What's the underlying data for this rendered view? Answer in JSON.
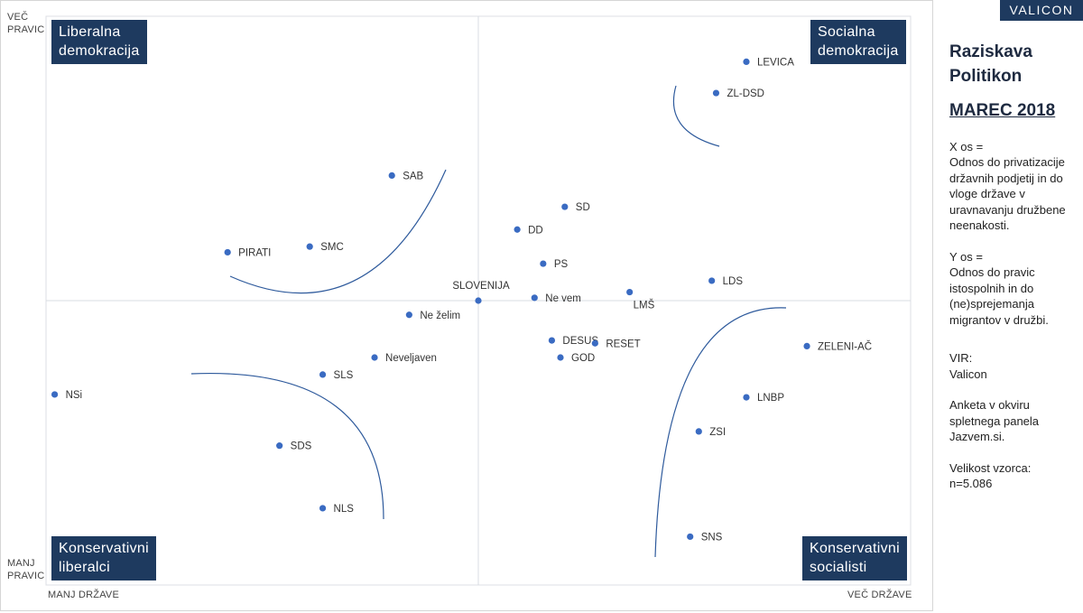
{
  "logo": "VALICON",
  "panel": {
    "title_line1": "Raziskava",
    "title_line2": "Politikon",
    "month": "MAREC 2018",
    "x_axis_heading": "X os =",
    "x_axis_desc": "Odnos do privatizacije državnih podjetij in do vloge države v uravnavanju družbene neenakosti.",
    "y_axis_heading": "Y os =",
    "y_axis_desc": "Odnos do pravic istospolnih in do (ne)sprejemanja migrantov v družbi.",
    "source_heading": "VIR:",
    "source": "Valicon",
    "survey": "Anketa v okviru spletnega panela Jazvem.si.",
    "sample_heading": "Velikost vzorca:",
    "sample": "n=5.086"
  },
  "axis_labels": {
    "y_top_1": "VEČ",
    "y_top_2": "PRAVIC",
    "y_bottom_1": "MANJ",
    "y_bottom_2": "PRAVIC",
    "x_left": "MANJ DRŽAVE",
    "x_right": "VEČ DRŽAVE"
  },
  "quadrants": {
    "top_left_1": "Liberalna",
    "top_left_2": "demokracija",
    "top_right_1": "Socialna",
    "top_right_2": "demokracija",
    "bottom_left_1": "Konservativni",
    "bottom_left_2": "liberalci",
    "bottom_right_1": "Konservativni",
    "bottom_right_2": "socialisti"
  },
  "chart_data": {
    "type": "scatter",
    "title": "",
    "xlabel": "",
    "ylabel": "",
    "xlim": [
      -100,
      100
    ],
    "ylim": [
      -100,
      100
    ],
    "grid": false,
    "point_color": "#3a6bc2",
    "line_color": "#2e5a9c",
    "points": [
      {
        "label": "LEVICA",
        "x": 62,
        "y": 84
      },
      {
        "label": "ZL-DSD",
        "x": 55,
        "y": 73
      },
      {
        "label": "SAB",
        "x": -20,
        "y": 44
      },
      {
        "label": "SD",
        "x": 20,
        "y": 33
      },
      {
        "label": "DD",
        "x": 9,
        "y": 25
      },
      {
        "label": "PIRATI",
        "x": -58,
        "y": 17
      },
      {
        "label": "SMC",
        "x": -39,
        "y": 19
      },
      {
        "label": "PS",
        "x": 15,
        "y": 13
      },
      {
        "label": "LDS",
        "x": 54,
        "y": 7
      },
      {
        "label": "LMŠ",
        "x": 35,
        "y": 3
      },
      {
        "label": "SLOVENIJA",
        "x": 0,
        "y": 0
      },
      {
        "label": "Ne vem",
        "x": 13,
        "y": 1
      },
      {
        "label": "Ne želim",
        "x": -16,
        "y": -5
      },
      {
        "label": "DESUS",
        "x": 17,
        "y": -14
      },
      {
        "label": "RESET",
        "x": 27,
        "y": -15
      },
      {
        "label": "ZELENI-AČ",
        "x": 76,
        "y": -16
      },
      {
        "label": "GOD",
        "x": 19,
        "y": -20
      },
      {
        "label": "Neveljaven",
        "x": -24,
        "y": -20
      },
      {
        "label": "SLS",
        "x": -36,
        "y": -26
      },
      {
        "label": "NSi",
        "x": -98,
        "y": -33
      },
      {
        "label": "LNBP",
        "x": 62,
        "y": -34
      },
      {
        "label": "ZSI",
        "x": 51,
        "y": -46
      },
      {
        "label": "SDS",
        "x": -46,
        "y": -51
      },
      {
        "label": "NLS",
        "x": -36,
        "y": -73
      },
      {
        "label": "SNS",
        "x": 49,
        "y": -83
      }
    ]
  }
}
